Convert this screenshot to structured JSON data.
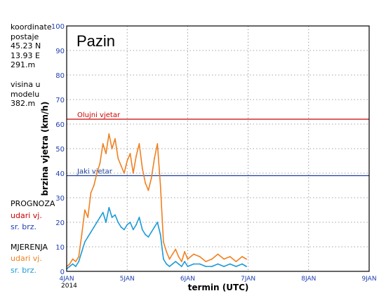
{
  "station_info": {
    "lines": [
      "koordinate",
      "postaje",
      "45.23 N",
      "13.93 E",
      "291.m"
    ],
    "model_lines": [
      "visina u",
      "modelu",
      "382.m"
    ]
  },
  "legend": {
    "prognoza_title": "PROGNOZA",
    "prognoza_gust": "udari vj.",
    "prognoza_mean": "sr. brz.",
    "mjerenja_title": "MJERENJA",
    "mjerenja_gust": "udari vj.",
    "mjerenja_mean": "sr. brz."
  },
  "colors": {
    "forecast_gust": "#cc0000",
    "forecast_mean": "#1f3fb0",
    "measured_gust": "#f08020",
    "measured_mean": "#1a9ad8",
    "olujni_line": "#cc0000",
    "jaki_line": "#1f3f9f",
    "axis_label": "#1f3fb0"
  },
  "chart_data": {
    "type": "line",
    "title": "Pazin",
    "xlabel": "termin (UTC)",
    "ylabel": "brzina vjetra (km/h)",
    "ylim": [
      0,
      100
    ],
    "yticks": [
      0,
      10,
      20,
      30,
      40,
      50,
      60,
      70,
      80,
      90,
      100
    ],
    "xlim_days": [
      4,
      9
    ],
    "xtick_labels": [
      "4JAN",
      "5JAN",
      "6JAN",
      "7JAN",
      "8JAN",
      "9JAN"
    ],
    "xtick_sublabel": "2014",
    "grid": true,
    "thresholds": [
      {
        "label": "Olujni vjetar",
        "value": 62
      },
      {
        "label": "Jaki vjetar",
        "value": 39
      }
    ],
    "series": [
      {
        "name": "udari vj.",
        "x_days": [
          4.0,
          4.05,
          4.1,
          4.15,
          4.2,
          4.25,
          4.3,
          4.35,
          4.4,
          4.45,
          4.5,
          4.55,
          4.6,
          4.65,
          4.7,
          4.75,
          4.8,
          4.85,
          4.9,
          4.95,
          5.0,
          5.05,
          5.1,
          5.15,
          5.2,
          5.25,
          5.3,
          5.35,
          5.4,
          5.45,
          5.5,
          5.55,
          5.6,
          5.65,
          5.7,
          5.75,
          5.8,
          5.85,
          5.9,
          5.95,
          6.0,
          6.1,
          6.2,
          6.3,
          6.4,
          6.5,
          6.6,
          6.7,
          6.8,
          6.9,
          6.97
        ],
        "values": [
          2,
          3,
          5,
          4,
          6,
          15,
          25,
          22,
          32,
          35,
          40,
          44,
          52,
          48,
          56,
          50,
          54,
          46,
          43,
          40,
          45,
          48,
          40,
          47,
          52,
          42,
          36,
          33,
          38,
          46,
          52,
          35,
          12,
          8,
          5,
          7,
          9,
          6,
          4,
          8,
          5,
          7,
          6,
          4,
          5,
          7,
          5,
          6,
          4,
          6,
          5
        ]
      },
      {
        "name": "sr. brz.",
        "x_days": [
          4.0,
          4.05,
          4.1,
          4.15,
          4.2,
          4.25,
          4.3,
          4.35,
          4.4,
          4.45,
          4.5,
          4.55,
          4.6,
          4.65,
          4.7,
          4.75,
          4.8,
          4.85,
          4.9,
          4.95,
          5.0,
          5.05,
          5.1,
          5.15,
          5.2,
          5.25,
          5.3,
          5.35,
          5.4,
          5.45,
          5.5,
          5.55,
          5.6,
          5.65,
          5.7,
          5.75,
          5.8,
          5.85,
          5.9,
          5.95,
          6.0,
          6.1,
          6.2,
          6.3,
          6.4,
          6.5,
          6.6,
          6.7,
          6.8,
          6.9,
          6.97
        ],
        "values": [
          1,
          2,
          3,
          2,
          4,
          8,
          12,
          14,
          16,
          18,
          20,
          22,
          24,
          20,
          26,
          22,
          23,
          20,
          18,
          17,
          19,
          20,
          17,
          19,
          22,
          17,
          15,
          14,
          16,
          18,
          20,
          15,
          5,
          3,
          2,
          3,
          4,
          3,
          2,
          4,
          2,
          3,
          3,
          2,
          2,
          3,
          2,
          3,
          2,
          3,
          2
        ]
      }
    ]
  }
}
